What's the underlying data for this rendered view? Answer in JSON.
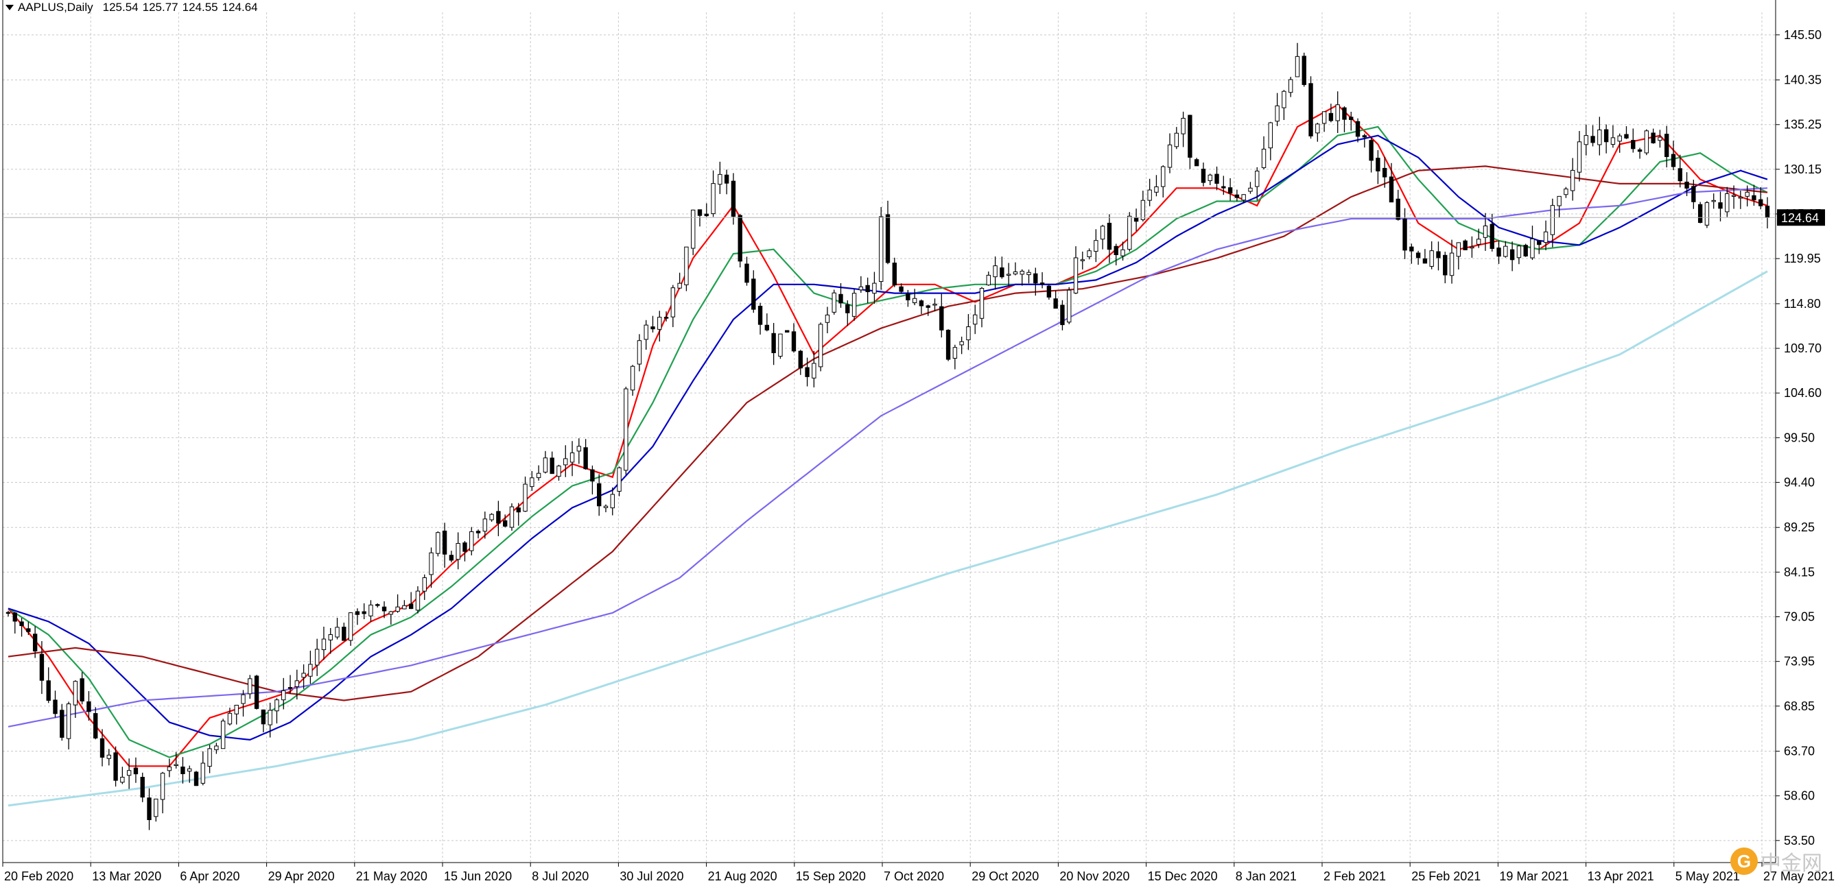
{
  "header": {
    "symbol": "AAPLUS,Daily",
    "open": "125.54",
    "high": "125.77",
    "low": "124.55",
    "close": "124.64"
  },
  "watermark": {
    "text": "中金网"
  },
  "chart_data": {
    "type": "candlestick",
    "title": "AAPLUS,Daily",
    "current_price": 124.64,
    "ylim": [
      50.98,
      148.07
    ],
    "y_ticks": [
      145.5,
      140.35,
      135.25,
      130.15,
      125.05,
      119.95,
      114.8,
      109.7,
      104.6,
      99.5,
      94.4,
      89.25,
      84.15,
      79.05,
      73.95,
      68.85,
      63.7,
      58.6,
      53.5
    ],
    "x_tick_labels": [
      "20 Feb 2020",
      "13 Mar 2020",
      "6 Apr 2020",
      "29 Apr 2020",
      "21 May 2020",
      "15 Jun 2020",
      "8 Jul 2020",
      "30 Jul 2020",
      "21 Aug 2020",
      "15 Sep 2020",
      "7 Oct 2020",
      "29 Oct 2020",
      "20 Nov 2020",
      "15 Dec 2020",
      "8 Jan 2021",
      "2 Feb 2021",
      "25 Feb 2021",
      "19 Mar 2021",
      "13 Apr 2021",
      "5 May 2021",
      "27 May 2021"
    ],
    "grid": true,
    "legend": "none",
    "colors": {
      "bull_body": "#ffffff",
      "bear_body": "#000000",
      "wick": "#000000",
      "grid": "#c8c8c8",
      "price_label_bg": "#000000"
    },
    "close_path": [
      [
        0,
        79.5
      ],
      [
        3,
        77
      ],
      [
        5,
        72.5
      ],
      [
        8,
        66
      ],
      [
        10,
        72
      ],
      [
        12,
        68
      ],
      [
        14,
        64
      ],
      [
        16,
        60.5
      ],
      [
        18,
        62
      ],
      [
        21,
        56.5
      ],
      [
        23,
        61
      ],
      [
        25,
        63
      ],
      [
        28,
        60.5
      ],
      [
        30,
        64
      ],
      [
        32,
        66.5
      ],
      [
        34,
        69
      ],
      [
        36,
        71.5
      ],
      [
        38,
        67.5
      ],
      [
        40,
        69.5
      ],
      [
        42,
        71
      ],
      [
        44,
        72.5
      ],
      [
        46,
        75
      ],
      [
        48,
        78
      ],
      [
        50,
        77
      ],
      [
        52,
        80
      ],
      [
        55,
        79.5
      ],
      [
        57,
        80
      ],
      [
        60,
        80.8
      ],
      [
        62,
        83
      ],
      [
        64,
        88
      ],
      [
        66,
        86
      ],
      [
        68,
        87
      ],
      [
        70,
        88.5
      ],
      [
        72,
        90.5
      ],
      [
        74,
        89.5
      ],
      [
        76,
        92
      ],
      [
        78,
        95
      ],
      [
        80,
        97
      ],
      [
        82,
        96
      ],
      [
        84,
        98.5
      ],
      [
        86,
        97
      ],
      [
        88,
        91.5
      ],
      [
        90,
        94
      ],
      [
        91,
        96
      ],
      [
        92,
        106
      ],
      [
        94,
        111
      ],
      [
        96,
        112
      ],
      [
        98,
        114
      ],
      [
        100,
        118
      ],
      [
        102,
        125
      ],
      [
        104,
        125
      ],
      [
        106,
        130
      ],
      [
        108,
        125.5
      ],
      [
        109,
        120
      ],
      [
        110,
        117.5
      ],
      [
        112,
        113
      ],
      [
        114,
        110
      ],
      [
        116,
        112
      ],
      [
        118,
        108
      ],
      [
        120,
        107
      ],
      [
        121,
        112
      ],
      [
        123,
        115
      ],
      [
        125,
        114
      ],
      [
        127,
        116
      ],
      [
        129,
        117
      ],
      [
        130,
        124
      ],
      [
        132,
        117
      ],
      [
        134,
        116
      ],
      [
        136,
        115.5
      ],
      [
        138,
        114
      ],
      [
        140,
        109
      ],
      [
        142,
        110
      ],
      [
        143,
        112
      ],
      [
        145,
        115.5
      ],
      [
        147,
        118.5
      ],
      [
        149,
        119
      ],
      [
        151,
        118
      ],
      [
        153,
        118
      ],
      [
        155,
        116
      ],
      [
        157,
        113
      ],
      [
        159,
        119
      ],
      [
        161,
        121
      ],
      [
        163,
        123
      ],
      [
        165,
        120
      ],
      [
        167,
        124
      ],
      [
        169,
        126
      ],
      [
        171,
        128
      ],
      [
        173,
        132
      ],
      [
        175,
        136
      ],
      [
        176,
        131
      ],
      [
        178,
        128
      ],
      [
        180,
        129
      ],
      [
        182,
        128
      ],
      [
        184,
        127
      ],
      [
        186,
        130
      ],
      [
        188,
        135
      ],
      [
        190,
        139
      ],
      [
        192,
        143
      ],
      [
        193,
        140
      ],
      [
        194,
        134
      ],
      [
        196,
        136
      ],
      [
        198,
        137
      ],
      [
        200,
        135
      ],
      [
        202,
        133
      ],
      [
        204,
        130
      ],
      [
        206,
        127
      ],
      [
        208,
        122
      ],
      [
        210,
        121
      ],
      [
        212,
        120
      ],
      [
        214,
        118
      ],
      [
        216,
        121
      ],
      [
        218,
        122
      ],
      [
        220,
        123
      ],
      [
        222,
        121
      ],
      [
        224,
        120
      ],
      [
        226,
        121
      ],
      [
        228,
        122
      ],
      [
        230,
        125
      ],
      [
        232,
        127
      ],
      [
        234,
        133
      ],
      [
        236,
        134
      ],
      [
        238,
        133.5
      ],
      [
        240,
        134
      ],
      [
        242,
        133
      ],
      [
        244,
        133.5
      ],
      [
        246,
        134.5
      ],
      [
        248,
        130
      ],
      [
        250,
        127
      ],
      [
        252,
        125
      ],
      [
        254,
        126
      ],
      [
        256,
        127
      ],
      [
        258,
        127
      ],
      [
        260,
        126
      ],
      [
        262,
        124.64
      ]
    ],
    "series": [
      {
        "color": "#ff0000",
        "values": [
          [
            0,
            80
          ],
          [
            6,
            74.5
          ],
          [
            12,
            67.5
          ],
          [
            18,
            62
          ],
          [
            24,
            62
          ],
          [
            30,
            67.5
          ],
          [
            36,
            69
          ],
          [
            42,
            70.5
          ],
          [
            48,
            75
          ],
          [
            54,
            78.5
          ],
          [
            60,
            80.5
          ],
          [
            66,
            85
          ],
          [
            72,
            89
          ],
          [
            78,
            93
          ],
          [
            84,
            96.5
          ],
          [
            90,
            95
          ],
          [
            96,
            110
          ],
          [
            102,
            120
          ],
          [
            108,
            126
          ],
          [
            114,
            118
          ],
          [
            120,
            109
          ],
          [
            126,
            113
          ],
          [
            132,
            117
          ],
          [
            138,
            117
          ],
          [
            144,
            115
          ],
          [
            150,
            117
          ],
          [
            156,
            117
          ],
          [
            162,
            119
          ],
          [
            168,
            123
          ],
          [
            174,
            128
          ],
          [
            180,
            128
          ],
          [
            186,
            126
          ],
          [
            192,
            135
          ],
          [
            198,
            137.5
          ],
          [
            204,
            133
          ],
          [
            210,
            124
          ],
          [
            216,
            121
          ],
          [
            222,
            122
          ],
          [
            228,
            121
          ],
          [
            234,
            124
          ],
          [
            240,
            133
          ],
          [
            246,
            134
          ],
          [
            252,
            129
          ],
          [
            258,
            127
          ],
          [
            262,
            126
          ]
        ]
      },
      {
        "color": "#20a050",
        "values": [
          [
            0,
            80
          ],
          [
            6,
            77
          ],
          [
            12,
            72
          ],
          [
            18,
            65
          ],
          [
            24,
            63
          ],
          [
            30,
            64.5
          ],
          [
            36,
            67
          ],
          [
            42,
            69.5
          ],
          [
            48,
            73
          ],
          [
            54,
            77
          ],
          [
            60,
            79
          ],
          [
            66,
            82.5
          ],
          [
            72,
            86.5
          ],
          [
            78,
            90.5
          ],
          [
            84,
            94
          ],
          [
            90,
            95.5
          ],
          [
            96,
            103.5
          ],
          [
            102,
            113
          ],
          [
            108,
            120.5
          ],
          [
            114,
            121
          ],
          [
            120,
            116
          ],
          [
            126,
            114.5
          ],
          [
            132,
            115.5
          ],
          [
            138,
            116.5
          ],
          [
            144,
            117
          ],
          [
            150,
            117
          ],
          [
            156,
            117
          ],
          [
            162,
            118.5
          ],
          [
            168,
            121
          ],
          [
            174,
            124.5
          ],
          [
            180,
            126.5
          ],
          [
            186,
            126.5
          ],
          [
            192,
            130
          ],
          [
            198,
            134
          ],
          [
            204,
            135
          ],
          [
            210,
            129
          ],
          [
            216,
            124
          ],
          [
            222,
            122
          ],
          [
            228,
            121
          ],
          [
            234,
            121.5
          ],
          [
            240,
            126
          ],
          [
            246,
            131
          ],
          [
            252,
            132
          ],
          [
            258,
            129
          ],
          [
            262,
            127.5
          ]
        ]
      },
      {
        "color": "#0000c8",
        "values": [
          [
            0,
            80
          ],
          [
            6,
            78.5
          ],
          [
            12,
            76
          ],
          [
            18,
            71.5
          ],
          [
            24,
            67
          ],
          [
            30,
            65.5
          ],
          [
            36,
            65
          ],
          [
            42,
            67
          ],
          [
            48,
            70.5
          ],
          [
            54,
            74.5
          ],
          [
            60,
            77
          ],
          [
            66,
            80
          ],
          [
            72,
            84
          ],
          [
            78,
            88
          ],
          [
            84,
            91.5
          ],
          [
            90,
            93.5
          ],
          [
            96,
            98.5
          ],
          [
            102,
            106
          ],
          [
            108,
            113
          ],
          [
            114,
            117
          ],
          [
            120,
            117
          ],
          [
            126,
            116.5
          ],
          [
            132,
            116
          ],
          [
            138,
            116
          ],
          [
            144,
            116
          ],
          [
            150,
            117
          ],
          [
            156,
            117
          ],
          [
            162,
            117.5
          ],
          [
            168,
            119.5
          ],
          [
            174,
            122.5
          ],
          [
            180,
            125
          ],
          [
            186,
            127
          ],
          [
            192,
            130
          ],
          [
            198,
            133
          ],
          [
            204,
            134
          ],
          [
            210,
            131.5
          ],
          [
            216,
            127
          ],
          [
            222,
            123.5
          ],
          [
            228,
            122
          ],
          [
            234,
            121.5
          ],
          [
            240,
            123.5
          ],
          [
            246,
            126
          ],
          [
            252,
            128.5
          ],
          [
            258,
            130
          ],
          [
            262,
            129
          ]
        ]
      },
      {
        "color": "#a01414",
        "values": [
          [
            0,
            74.5
          ],
          [
            10,
            75.5
          ],
          [
            20,
            74.5
          ],
          [
            30,
            72.5
          ],
          [
            40,
            70.5
          ],
          [
            50,
            69.5
          ],
          [
            60,
            70.5
          ],
          [
            70,
            74.5
          ],
          [
            80,
            80.5
          ],
          [
            90,
            86.5
          ],
          [
            100,
            95
          ],
          [
            110,
            103.5
          ],
          [
            120,
            108.5
          ],
          [
            130,
            112
          ],
          [
            140,
            114.5
          ],
          [
            150,
            116
          ],
          [
            160,
            116.5
          ],
          [
            170,
            118
          ],
          [
            180,
            120
          ],
          [
            190,
            122.5
          ],
          [
            200,
            127
          ],
          [
            210,
            130
          ],
          [
            220,
            130.5
          ],
          [
            230,
            129.5
          ],
          [
            240,
            128.5
          ],
          [
            250,
            128.5
          ],
          [
            262,
            127.5
          ]
        ]
      },
      {
        "color": "#7b68ee",
        "values": [
          [
            0,
            66.5
          ],
          [
            20,
            69.5
          ],
          [
            40,
            70.5
          ],
          [
            60,
            73.5
          ],
          [
            80,
            77.5
          ],
          [
            90,
            79.5
          ],
          [
            100,
            83.5
          ],
          [
            110,
            90
          ],
          [
            120,
            96
          ],
          [
            130,
            102
          ],
          [
            140,
            106
          ],
          [
            150,
            110
          ],
          [
            160,
            114
          ],
          [
            170,
            118
          ],
          [
            180,
            121
          ],
          [
            190,
            123
          ],
          [
            200,
            124.5
          ],
          [
            210,
            124.5
          ],
          [
            220,
            124.5
          ],
          [
            230,
            125.5
          ],
          [
            240,
            126
          ],
          [
            250,
            127.5
          ],
          [
            262,
            128
          ]
        ]
      },
      {
        "color": "#a8dde8",
        "values": [
          [
            0,
            57.5
          ],
          [
            20,
            59.5
          ],
          [
            40,
            62
          ],
          [
            60,
            65
          ],
          [
            80,
            69
          ],
          [
            100,
            74
          ],
          [
            120,
            79
          ],
          [
            140,
            84
          ],
          [
            160,
            88.5
          ],
          [
            180,
            93
          ],
          [
            200,
            98.5
          ],
          [
            220,
            103.5
          ],
          [
            240,
            109
          ],
          [
            262,
            118.5
          ]
        ]
      }
    ]
  }
}
